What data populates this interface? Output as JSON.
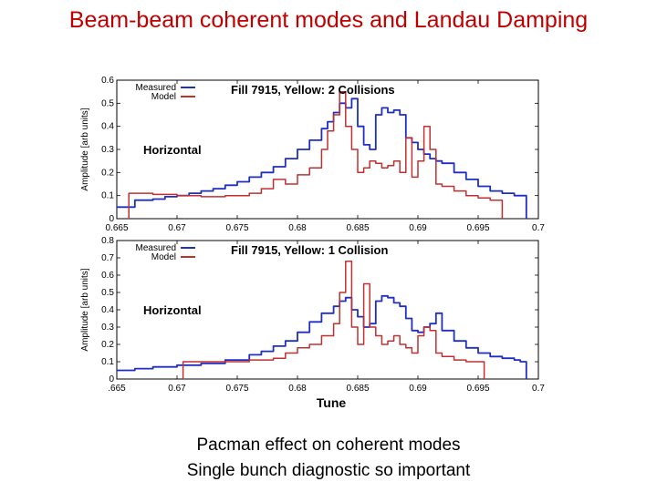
{
  "slide": {
    "title": "Beam-beam coherent modes and Landau Damping",
    "caption_line1": "Pacman effect on coherent modes",
    "caption_line2": "Single bunch diagnostic so important"
  },
  "colors": {
    "measured": "#1f2fbf",
    "model": "#c03030",
    "title": "#c00000"
  },
  "chart_data": [
    {
      "type": "line",
      "title": "Fill 7915, Yellow: 2 Collisions",
      "annotation": "Horizontal",
      "xlabel": "",
      "ylabel": "Amplitude [arb units]",
      "xlim": [
        0.665,
        0.7
      ],
      "ylim": [
        0,
        0.6
      ],
      "xticks": [
        "0.665",
        "0.67",
        "0.675",
        "0.68",
        "0.685",
        "0.69",
        "0.695",
        "0.7"
      ],
      "yticks": [
        "0",
        "0.1",
        "0.2",
        "0.3",
        "0.4",
        "0.5",
        "0.6"
      ],
      "legend": "top-left",
      "series": [
        {
          "name": "Measured",
          "x": [
            0.665,
            0.6665,
            0.668,
            0.669,
            0.67,
            0.671,
            0.672,
            0.673,
            0.674,
            0.675,
            0.676,
            0.677,
            0.678,
            0.679,
            0.68,
            0.681,
            0.682,
            0.6825,
            0.683,
            0.6835,
            0.684,
            0.6845,
            0.685,
            0.6855,
            0.686,
            0.6865,
            0.687,
            0.6875,
            0.688,
            0.6885,
            0.689,
            0.6895,
            0.69,
            0.6905,
            0.691,
            0.6915,
            0.692,
            0.693,
            0.694,
            0.695,
            0.696,
            0.697,
            0.698,
            0.6985,
            0.699,
            0.699
          ],
          "y": [
            0.05,
            0.08,
            0.085,
            0.095,
            0.1,
            0.11,
            0.12,
            0.13,
            0.145,
            0.16,
            0.18,
            0.2,
            0.225,
            0.26,
            0.3,
            0.34,
            0.39,
            0.42,
            0.46,
            0.5,
            0.48,
            0.52,
            0.4,
            0.32,
            0.3,
            0.45,
            0.48,
            0.46,
            0.47,
            0.45,
            0.35,
            0.33,
            0.3,
            0.28,
            0.26,
            0.25,
            0.24,
            0.2,
            0.17,
            0.14,
            0.12,
            0.11,
            0.1,
            0.1,
            0.09,
            0.0
          ]
        },
        {
          "name": "Model",
          "x": [
            0.666,
            0.666,
            0.668,
            0.67,
            0.672,
            0.674,
            0.676,
            0.677,
            0.678,
            0.679,
            0.68,
            0.681,
            0.682,
            0.6825,
            0.683,
            0.6835,
            0.684,
            0.6845,
            0.685,
            0.6855,
            0.686,
            0.6865,
            0.687,
            0.6875,
            0.688,
            0.6885,
            0.689,
            0.6895,
            0.69,
            0.6905,
            0.691,
            0.6915,
            0.692,
            0.693,
            0.694,
            0.695,
            0.696,
            0.697,
            0.697
          ],
          "y": [
            0.0,
            0.11,
            0.105,
            0.1,
            0.095,
            0.1,
            0.11,
            0.13,
            0.17,
            0.15,
            0.19,
            0.22,
            0.3,
            0.38,
            0.45,
            0.55,
            0.4,
            0.3,
            0.2,
            0.22,
            0.25,
            0.24,
            0.22,
            0.23,
            0.25,
            0.2,
            0.35,
            0.18,
            0.25,
            0.4,
            0.3,
            0.15,
            0.14,
            0.12,
            0.1,
            0.09,
            0.08,
            0.07,
            0.0
          ]
        }
      ]
    },
    {
      "type": "line",
      "title": "Fill 7915, Yellow: 1 Collision",
      "annotation": "Horizontal",
      "xlabel": "Tune",
      "ylabel": "Amplitude [arb units]",
      "xlim": [
        0.665,
        0.7
      ],
      "ylim": [
        0,
        0.8
      ],
      "xticks": [
        ".665",
        "0.67",
        "0.675",
        "0.68",
        "0.685",
        "0.69",
        "0.695",
        "0.7"
      ],
      "yticks": [
        "0",
        "0.1",
        "0.2",
        "0.3",
        "0.4",
        "0.5",
        "0.6",
        "0.7",
        "0.8"
      ],
      "legend": "top-left",
      "series": [
        {
          "name": "Measured",
          "x": [
            0.665,
            0.6665,
            0.668,
            0.67,
            0.672,
            0.674,
            0.676,
            0.677,
            0.678,
            0.679,
            0.68,
            0.681,
            0.682,
            0.683,
            0.6835,
            0.684,
            0.6845,
            0.685,
            0.6855,
            0.686,
            0.6865,
            0.687,
            0.6875,
            0.688,
            0.6885,
            0.689,
            0.6895,
            0.69,
            0.6905,
            0.691,
            0.6915,
            0.692,
            0.693,
            0.694,
            0.695,
            0.696,
            0.697,
            0.698,
            0.6985,
            0.699,
            0.699
          ],
          "y": [
            0.05,
            0.06,
            0.07,
            0.08,
            0.09,
            0.11,
            0.14,
            0.16,
            0.19,
            0.22,
            0.27,
            0.33,
            0.38,
            0.42,
            0.45,
            0.47,
            0.4,
            0.36,
            0.3,
            0.32,
            0.45,
            0.48,
            0.47,
            0.44,
            0.42,
            0.35,
            0.28,
            0.27,
            0.3,
            0.32,
            0.38,
            0.28,
            0.22,
            0.18,
            0.15,
            0.13,
            0.12,
            0.11,
            0.1,
            0.1,
            0.0
          ]
        },
        {
          "name": "Model",
          "x": [
            0.6705,
            0.6705,
            0.672,
            0.674,
            0.676,
            0.678,
            0.679,
            0.68,
            0.681,
            0.682,
            0.683,
            0.6835,
            0.684,
            0.6845,
            0.685,
            0.6855,
            0.686,
            0.6865,
            0.687,
            0.6875,
            0.688,
            0.6885,
            0.689,
            0.6895,
            0.69,
            0.6905,
            0.691,
            0.6915,
            0.692,
            0.693,
            0.694,
            0.695,
            0.6955,
            0.6955
          ],
          "y": [
            0.0,
            0.1,
            0.1,
            0.1,
            0.11,
            0.12,
            0.15,
            0.18,
            0.2,
            0.25,
            0.32,
            0.5,
            0.68,
            0.3,
            0.2,
            0.55,
            0.3,
            0.25,
            0.2,
            0.22,
            0.25,
            0.2,
            0.18,
            0.15,
            0.25,
            0.3,
            0.28,
            0.15,
            0.13,
            0.11,
            0.1,
            0.1,
            0.09,
            0.0
          ]
        }
      ]
    }
  ]
}
